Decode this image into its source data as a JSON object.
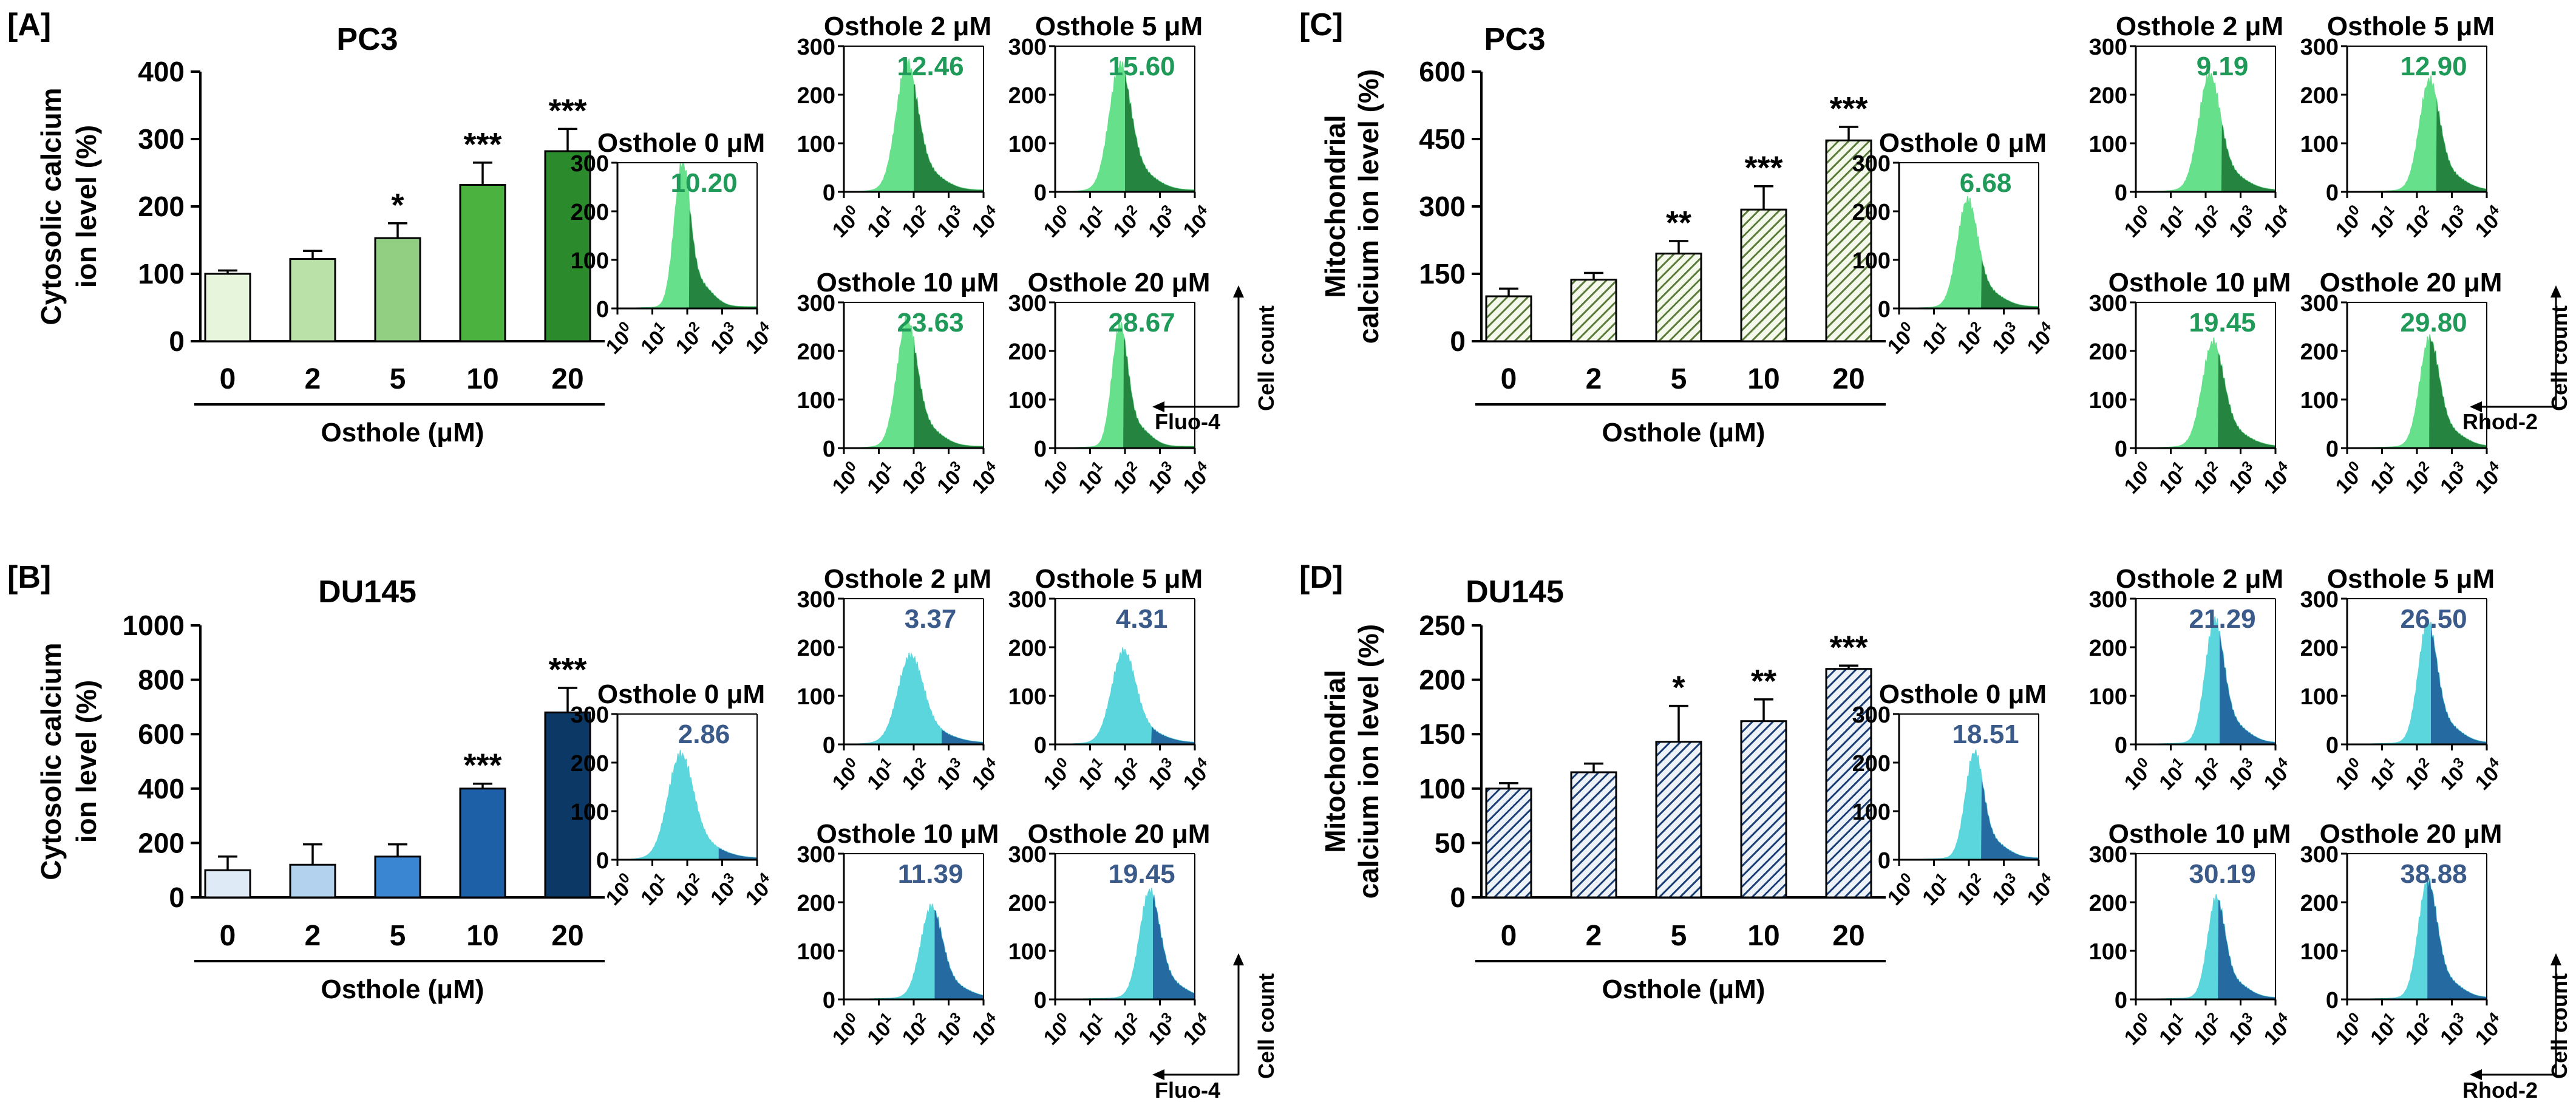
{
  "chart_data": [
    {
      "type": "bar",
      "panel": "[A]",
      "title": "PC3",
      "ylabel_lines": [
        "Cytosolic calcium",
        "ion level (%)"
      ],
      "xlabel": "Osthole (μM)",
      "categories": [
        "0",
        "2",
        "5",
        "10",
        "20"
      ],
      "values": [
        100,
        122,
        153,
        232,
        282
      ],
      "errors": [
        5,
        12,
        22,
        33,
        33
      ],
      "significance": [
        "",
        "",
        "*",
        "***",
        "***"
      ],
      "ylim": [
        0,
        400
      ],
      "yticks": [
        "0",
        "100",
        "200",
        "300",
        "400"
      ],
      "bar_colors": [
        "#e6f5dc",
        "#b9e1a8",
        "#93cf82",
        "#4bb13f",
        "#2a8a2c"
      ],
      "pattern": "solid"
    },
    {
      "type": "bar",
      "panel": "[B]",
      "title": "DU145",
      "ylabel_lines": [
        "Cytosolic calcium",
        "ion level (%)"
      ],
      "xlabel": "Osthole (μM)",
      "categories": [
        "0",
        "2",
        "5",
        "10",
        "20"
      ],
      "values": [
        100,
        120,
        150,
        400,
        680
      ],
      "errors": [
        50,
        75,
        45,
        18,
        90
      ],
      "significance": [
        "",
        "",
        "",
        "***",
        "***"
      ],
      "ylim": [
        0,
        1000
      ],
      "yticks": [
        "0",
        "200",
        "400",
        "600",
        "800",
        "1000"
      ],
      "bar_colors": [
        "#deeaf6",
        "#b3d2ee",
        "#3a86d2",
        "#1e60a8",
        "#0c3866"
      ],
      "pattern": "solid"
    },
    {
      "type": "bar",
      "panel": "[C]",
      "title": "PC3",
      "ylabel_lines": [
        "Mitochondrial",
        "calcium ion level (%)"
      ],
      "xlabel": "Osthole (μM)",
      "categories": [
        "0",
        "2",
        "5",
        "10",
        "20"
      ],
      "values": [
        100,
        137,
        195,
        293,
        447
      ],
      "errors": [
        17,
        15,
        28,
        52,
        30
      ],
      "significance": [
        "",
        "",
        "**",
        "***",
        "***"
      ],
      "ylim": [
        0,
        600
      ],
      "yticks": [
        "0",
        "150",
        "300",
        "450",
        "600"
      ],
      "bar_colors": [
        "#5a7a3a",
        "#5a7a3a",
        "#5a7a3a",
        "#5a7a3a",
        "#5a7a3a"
      ],
      "pattern": "hatch"
    },
    {
      "type": "bar",
      "panel": "[D]",
      "title": "DU145",
      "ylabel_lines": [
        "Mitochondrial",
        "calcium ion level (%)"
      ],
      "xlabel": "Osthole (μM)",
      "categories": [
        "0",
        "2",
        "5",
        "10",
        "20"
      ],
      "values": [
        100,
        115,
        143,
        162,
        210
      ],
      "errors": [
        5,
        8,
        33,
        20,
        3
      ],
      "significance": [
        "",
        "",
        "*",
        "**",
        "***"
      ],
      "ylim": [
        0,
        250
      ],
      "yticks": [
        "0",
        "50",
        "100",
        "150",
        "200",
        "250"
      ],
      "bar_colors": [
        "#1a3d73",
        "#1a3d73",
        "#1a3d73",
        "#1a3d73",
        "#1a3d73"
      ],
      "pattern": "hatch"
    },
    {
      "type": "histogram-set",
      "row": "PC3",
      "probe": "Fluo-4",
      "axis_label": "Cell count",
      "fill": "#66e08a",
      "dark": "#1f7a38",
      "value_color": "#1f9a58",
      "yticks": [
        "0",
        "100",
        "200",
        "300"
      ],
      "xticks": [
        "0",
        "1",
        "2",
        "3",
        "4"
      ],
      "panels": [
        {
          "title": "Osthole 0 μM",
          "value": "10.20",
          "peak": 1.85,
          "width": 0.22,
          "height": 0.9,
          "gate": 2.05
        },
        {
          "title": "Osthole 2 μM",
          "value": "12.46",
          "peak": 1.8,
          "width": 0.3,
          "height": 0.77,
          "gate": 2.0
        },
        {
          "title": "Osthole 5 μM",
          "value": "15.60",
          "peak": 1.85,
          "width": 0.3,
          "height": 0.76,
          "gate": 2.0
        },
        {
          "title": "Osthole 10 μM",
          "value": "23.63",
          "peak": 1.8,
          "width": 0.28,
          "height": 0.77,
          "gate": 2.0
        },
        {
          "title": "Osthole 20 μM",
          "value": "28.67",
          "peak": 1.85,
          "width": 0.22,
          "height": 0.76,
          "gate": 1.95
        }
      ]
    },
    {
      "type": "histogram-set",
      "row": "DU145",
      "probe": "Fluo-4",
      "axis_label": "Cell count",
      "fill": "#5ad6dc",
      "dark": "#1f5f9a",
      "value_color": "#3a5a8a",
      "yticks": [
        "0",
        "100",
        "200",
        "300"
      ],
      "xticks": [
        "0",
        "1",
        "2",
        "3",
        "4"
      ],
      "panels": [
        {
          "title": "Osthole 0 μM",
          "value": "2.86",
          "peak": 1.8,
          "width": 0.35,
          "height": 0.62,
          "gate": 2.9
        },
        {
          "title": "Osthole 2 μM",
          "value": "3.37",
          "peak": 1.9,
          "width": 0.35,
          "height": 0.52,
          "gate": 2.8
        },
        {
          "title": "Osthole 5 μM",
          "value": "4.31",
          "peak": 1.95,
          "width": 0.33,
          "height": 0.55,
          "gate": 2.75
        },
        {
          "title": "Osthole 10 μM",
          "value": "11.39",
          "peak": 2.5,
          "width": 0.3,
          "height": 0.55,
          "gate": 2.6
        },
        {
          "title": "Osthole 20 μM",
          "value": "19.45",
          "peak": 2.7,
          "width": 0.28,
          "height": 0.65,
          "gate": 2.8
        }
      ]
    },
    {
      "type": "histogram-set",
      "row": "PC3",
      "probe": "Rhod-2",
      "axis_label": "Cell count",
      "fill": "#66e08a",
      "dark": "#1f7a38",
      "value_color": "#1f9a58",
      "yticks": [
        "0",
        "100",
        "200",
        "300"
      ],
      "xticks": [
        "0",
        "1",
        "2",
        "3",
        "4"
      ],
      "panels": [
        {
          "title": "Osthole 0 μM",
          "value": "6.68",
          "peak": 1.95,
          "width": 0.28,
          "height": 0.65,
          "gate": 2.35
        },
        {
          "title": "Osthole 2 μM",
          "value": "9.19",
          "peak": 2.1,
          "width": 0.3,
          "height": 0.7,
          "gate": 2.45
        },
        {
          "title": "Osthole 5 μM",
          "value": "12.90",
          "peak": 2.35,
          "width": 0.28,
          "height": 0.67,
          "gate": 2.55
        },
        {
          "title": "Osthole 10 μM",
          "value": "19.45",
          "peak": 2.2,
          "width": 0.3,
          "height": 0.63,
          "gate": 2.35
        },
        {
          "title": "Osthole 20 μM",
          "value": "29.80",
          "peak": 2.35,
          "width": 0.27,
          "height": 0.66,
          "gate": 2.35
        }
      ]
    },
    {
      "type": "histogram-set",
      "row": "DU145",
      "probe": "Rhod-2",
      "axis_label": "Cell count",
      "fill": "#5ad6dc",
      "dark": "#1f5f9a",
      "value_color": "#3a5a8a",
      "yticks": [
        "0",
        "100",
        "200",
        "300"
      ],
      "xticks": [
        "0",
        "1",
        "2",
        "3",
        "4"
      ],
      "panels": [
        {
          "title": "Osthole 0 μM",
          "value": "18.51",
          "peak": 2.15,
          "width": 0.25,
          "height": 0.65,
          "gate": 2.35
        },
        {
          "title": "Osthole 2 μM",
          "value": "21.29",
          "peak": 2.25,
          "width": 0.26,
          "height": 0.75,
          "gate": 2.4
        },
        {
          "title": "Osthole 5 μM",
          "value": "26.50",
          "peak": 2.3,
          "width": 0.26,
          "height": 0.74,
          "gate": 2.4
        },
        {
          "title": "Osthole 10 μM",
          "value": "30.19",
          "peak": 2.3,
          "width": 0.24,
          "height": 0.62,
          "gate": 2.35
        },
        {
          "title": "Osthole 20 μM",
          "value": "38.88",
          "peak": 2.3,
          "width": 0.26,
          "height": 0.72,
          "gate": 2.3
        }
      ]
    }
  ]
}
